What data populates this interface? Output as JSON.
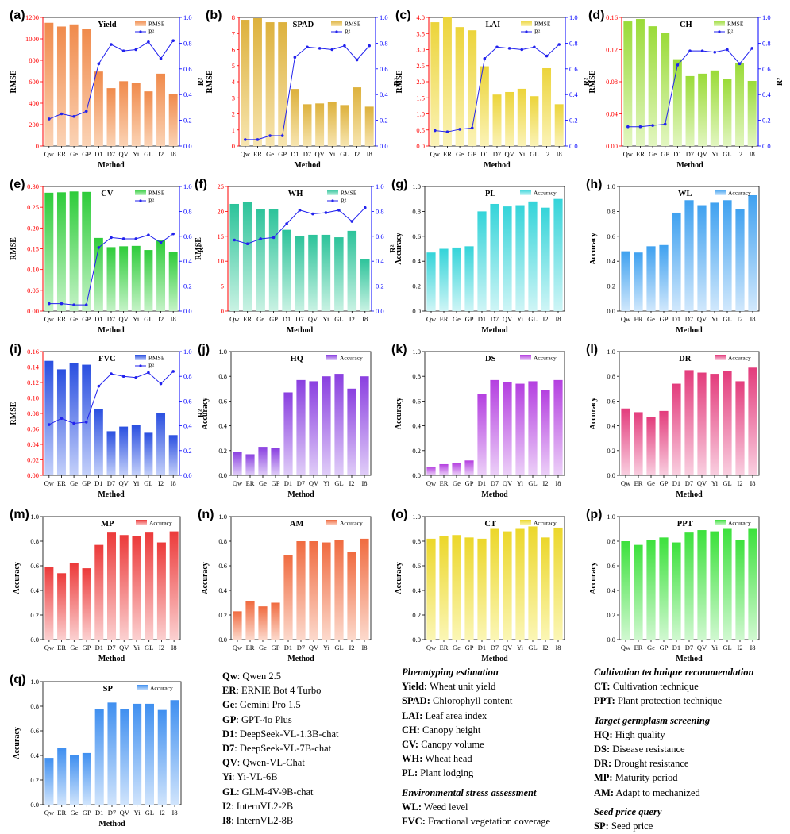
{
  "methods": [
    "Qw",
    "ER",
    "Ge",
    "GP",
    "D1",
    "D7",
    "QV",
    "Yi",
    "GL",
    "I2",
    "I8"
  ],
  "axis": {
    "xlabel": "Method"
  },
  "colors": {
    "yield": [
      "#f08a4b",
      "#fbd3b5"
    ],
    "spad": [
      "#ddb13c",
      "#f7e5b0"
    ],
    "lai": [
      "#ecd43a",
      "#fbf3b7"
    ],
    "ch": [
      "#9adb38",
      "#e2f6c0"
    ],
    "cv": [
      "#2ecc3a",
      "#c5f3c7"
    ],
    "wh": [
      "#2cc39a",
      "#c9f2e3"
    ],
    "pl": [
      "#34d4d9",
      "#cff5f6"
    ],
    "wl": [
      "#3fa1f0",
      "#d1e8fc"
    ],
    "fvc": [
      "#2a4fe0",
      "#c4d0fa"
    ],
    "hq": [
      "#8a3fe0",
      "#e0cdf8"
    ],
    "ds": [
      "#b43fe0",
      "#ecd0f8"
    ],
    "dr": [
      "#e33c7c",
      "#f9cfe0"
    ],
    "mp": [
      "#ec3a3a",
      "#fbd0d0"
    ],
    "am": [
      "#f06b40",
      "#fcd9cc"
    ],
    "ct": [
      "#ecd72a",
      "#fbf6b5"
    ],
    "ppt": [
      "#3ce13c",
      "#d0f8d0"
    ],
    "sp": [
      "#3f8ff0",
      "#d0e4fc"
    ],
    "r2_line": "#2222ee",
    "rmse_axis": "#ff0000",
    "r2_axis": "#0000ff"
  },
  "chart_data": [
    {
      "id": "a",
      "panel": "(a)",
      "title": "Yield",
      "type": "bar+line",
      "color_key": "yield",
      "ylabel": "RMSE",
      "y2label": "R²",
      "legend": [
        "RMSE",
        "R²"
      ],
      "ylim": [
        0,
        1200
      ],
      "yticks": [
        0,
        200,
        400,
        600,
        800,
        1000,
        1200
      ],
      "yticklabels": [
        "0",
        "200",
        "400",
        "600",
        "800",
        "1000",
        "1200"
      ],
      "y2lim": [
        0,
        1.0
      ],
      "y2ticks": [
        0,
        0.2,
        0.4,
        0.6,
        0.8,
        1.0
      ],
      "y2ticklabels": [
        "0.0",
        "0.2",
        "0.4",
        "0.6",
        "0.8",
        "1.0"
      ],
      "values": [
        1150,
        1115,
        1135,
        1095,
        695,
        540,
        605,
        590,
        510,
        675,
        485
      ],
      "r2": [
        0.21,
        0.25,
        0.23,
        0.27,
        0.64,
        0.79,
        0.74,
        0.75,
        0.81,
        0.68,
        0.82
      ]
    },
    {
      "id": "b",
      "panel": "(b)",
      "title": "SPAD",
      "type": "bar+line",
      "color_key": "spad",
      "ylabel": "RMSE",
      "y2label": "R²",
      "legend": [
        "RMSE",
        "R²"
      ],
      "ylim": [
        0,
        8
      ],
      "yticks": [
        0,
        1,
        2,
        3,
        4,
        5,
        6,
        7,
        8
      ],
      "yticklabels": [
        "0",
        "1",
        "2",
        "3",
        "4",
        "5",
        "6",
        "7",
        "8"
      ],
      "y2lim": [
        0,
        1.0
      ],
      "y2ticks": [
        0,
        0.2,
        0.4,
        0.6,
        0.8,
        1.0
      ],
      "y2ticklabels": [
        "0.0",
        "0.2",
        "0.4",
        "0.6",
        "0.8",
        "1.0"
      ],
      "values": [
        7.85,
        7.95,
        7.7,
        7.7,
        3.55,
        2.6,
        2.65,
        2.75,
        2.55,
        3.65,
        2.45
      ],
      "r2": [
        0.05,
        0.05,
        0.08,
        0.08,
        0.69,
        0.77,
        0.76,
        0.75,
        0.78,
        0.67,
        0.78
      ]
    },
    {
      "id": "c",
      "panel": "(c)",
      "title": "LAI",
      "type": "bar+line",
      "color_key": "lai",
      "ylabel": "RMSE",
      "y2label": "R²",
      "legend": [
        "RMSE",
        "R²"
      ],
      "ylim": [
        0,
        4.0
      ],
      "yticks": [
        0,
        0.5,
        1.0,
        1.5,
        2.0,
        2.5,
        3.0,
        3.5,
        4.0
      ],
      "yticklabels": [
        "0.0",
        "0.5",
        "1.0",
        "1.5",
        "2.0",
        "2.5",
        "3.0",
        "3.5",
        "4.0"
      ],
      "y2lim": [
        0,
        1.0
      ],
      "y2ticks": [
        0,
        0.2,
        0.4,
        0.6,
        0.8,
        1.0
      ],
      "y2ticklabels": [
        "0.0",
        "0.2",
        "0.4",
        "0.6",
        "0.8",
        "1.0"
      ],
      "values": [
        3.85,
        4.0,
        3.7,
        3.6,
        2.48,
        1.6,
        1.68,
        1.78,
        1.55,
        2.42,
        1.3
      ],
      "r2": [
        0.12,
        0.11,
        0.13,
        0.14,
        0.68,
        0.77,
        0.76,
        0.75,
        0.77,
        0.7,
        0.79
      ]
    },
    {
      "id": "d",
      "panel": "(d)",
      "title": "CH",
      "type": "bar+line",
      "color_key": "ch",
      "ylabel": "RMSE",
      "y2label": "R²",
      "legend": [
        "RMSE",
        "R²"
      ],
      "ylim": [
        0,
        0.16
      ],
      "yticks": [
        0,
        0.04,
        0.08,
        0.12,
        0.16
      ],
      "yticklabels": [
        "0.00",
        "0.04",
        "0.08",
        "0.12",
        "0.16"
      ],
      "y2lim": [
        0,
        1.0
      ],
      "y2ticks": [
        0,
        0.2,
        0.4,
        0.6,
        0.8,
        1.0
      ],
      "y2ticklabels": [
        "0.0",
        "0.2",
        "0.4",
        "0.6",
        "0.8",
        "1.0"
      ],
      "values": [
        0.155,
        0.158,
        0.149,
        0.141,
        0.108,
        0.087,
        0.09,
        0.094,
        0.083,
        0.103,
        0.081
      ],
      "r2": [
        0.15,
        0.15,
        0.16,
        0.17,
        0.63,
        0.74,
        0.74,
        0.73,
        0.75,
        0.64,
        0.76
      ]
    },
    {
      "id": "e",
      "panel": "(e)",
      "title": "CV",
      "type": "bar+line",
      "color_key": "cv",
      "ylabel": "RMSE",
      "y2label": "R²",
      "legend": [
        "RMSE",
        "R²"
      ],
      "ylim": [
        0,
        0.3
      ],
      "yticks": [
        0,
        0.05,
        0.1,
        0.15,
        0.2,
        0.25,
        0.3
      ],
      "yticklabels": [
        "0.00",
        "0.05",
        "0.10",
        "0.15",
        "0.20",
        "0.25",
        "0.30"
      ],
      "y2lim": [
        0,
        1.0
      ],
      "y2ticks": [
        0,
        0.2,
        0.4,
        0.6,
        0.8,
        1.0
      ],
      "y2ticklabels": [
        "0.0",
        "0.2",
        "0.4",
        "0.6",
        "0.8",
        "1.0"
      ],
      "values": [
        0.285,
        0.286,
        0.288,
        0.287,
        0.176,
        0.154,
        0.156,
        0.157,
        0.147,
        0.17,
        0.142
      ],
      "r2": [
        0.06,
        0.06,
        0.05,
        0.05,
        0.51,
        0.59,
        0.58,
        0.58,
        0.61,
        0.55,
        0.62
      ]
    },
    {
      "id": "f",
      "panel": "(f)",
      "title": "WH",
      "type": "bar+line",
      "color_key": "wh",
      "ylabel": "RMSE",
      "y2label": "R²",
      "legend": [
        "RMSE",
        "R²"
      ],
      "ylim": [
        0,
        25
      ],
      "yticks": [
        0,
        5,
        10,
        15,
        20,
        25
      ],
      "yticklabels": [
        "0",
        "5",
        "10",
        "15",
        "20",
        "25"
      ],
      "y2lim": [
        0,
        1.0
      ],
      "y2ticks": [
        0,
        0.2,
        0.4,
        0.6,
        0.8,
        1.0
      ],
      "y2ticklabels": [
        "0.0",
        "0.2",
        "0.4",
        "0.6",
        "0.8",
        "1.0"
      ],
      "values": [
        21.5,
        21.9,
        20.5,
        20.4,
        16.3,
        15.0,
        15.3,
        15.3,
        14.8,
        16.1,
        10.5
      ],
      "r2": [
        0.57,
        0.54,
        0.58,
        0.59,
        0.7,
        0.81,
        0.78,
        0.79,
        0.81,
        0.72,
        0.83
      ]
    },
    {
      "id": "g",
      "panel": "(g)",
      "title": "PL",
      "type": "bar",
      "color_key": "pl",
      "ylabel": "Accuracy",
      "legend": [
        "Accuracy"
      ],
      "ylim": [
        0,
        1.0
      ],
      "yticks": [
        0,
        0.2,
        0.4,
        0.6,
        0.8,
        1.0
      ],
      "yticklabels": [
        "0.0",
        "0.2",
        "0.4",
        "0.6",
        "0.8",
        "1.0"
      ],
      "values": [
        0.47,
        0.5,
        0.51,
        0.52,
        0.8,
        0.86,
        0.84,
        0.85,
        0.88,
        0.83,
        0.9
      ]
    },
    {
      "id": "h",
      "panel": "(h)",
      "title": "WL",
      "type": "bar",
      "color_key": "wl",
      "ylabel": "Accuracy",
      "legend": [
        "Accuracy"
      ],
      "ylim": [
        0,
        1.0
      ],
      "yticks": [
        0,
        0.2,
        0.4,
        0.6,
        0.8,
        1.0
      ],
      "yticklabels": [
        "0.0",
        "0.2",
        "0.4",
        "0.6",
        "0.8",
        "1.0"
      ],
      "values": [
        0.48,
        0.47,
        0.52,
        0.53,
        0.79,
        0.89,
        0.85,
        0.87,
        0.89,
        0.82,
        0.93
      ]
    },
    {
      "id": "i",
      "panel": "(i)",
      "title": "FVC",
      "type": "bar+line",
      "color_key": "fvc",
      "ylabel": "RMSE",
      "y2label": "R²",
      "legend": [
        "RMSE",
        "R²"
      ],
      "ylim": [
        0,
        0.16
      ],
      "yticks": [
        0,
        0.02,
        0.04,
        0.06,
        0.08,
        0.1,
        0.12,
        0.14,
        0.16
      ],
      "yticklabels": [
        "0.00",
        "0.02",
        "0.04",
        "0.06",
        "0.08",
        "0.10",
        "0.12",
        "0.14",
        "0.16"
      ],
      "y2lim": [
        0,
        1.0
      ],
      "y2ticks": [
        0,
        0.2,
        0.4,
        0.6,
        0.8,
        1.0
      ],
      "y2ticklabels": [
        "0.0",
        "0.2",
        "0.4",
        "0.6",
        "0.8",
        "1.0"
      ],
      "values": [
        0.148,
        0.137,
        0.145,
        0.143,
        0.086,
        0.057,
        0.063,
        0.065,
        0.055,
        0.081,
        0.052
      ],
      "r2": [
        0.41,
        0.46,
        0.42,
        0.43,
        0.72,
        0.82,
        0.8,
        0.79,
        0.83,
        0.74,
        0.84
      ]
    },
    {
      "id": "j",
      "panel": "(j)",
      "title": "HQ",
      "type": "bar",
      "color_key": "hq",
      "ylabel": "Accuracy",
      "legend": [
        "Accuracy"
      ],
      "ylim": [
        0,
        1.0
      ],
      "yticks": [
        0,
        0.2,
        0.4,
        0.6,
        0.8,
        1.0
      ],
      "yticklabels": [
        "0.0",
        "0.2",
        "0.4",
        "0.6",
        "0.8",
        "1.0"
      ],
      "values": [
        0.19,
        0.17,
        0.23,
        0.22,
        0.67,
        0.77,
        0.76,
        0.8,
        0.82,
        0.7,
        0.8
      ]
    },
    {
      "id": "k",
      "panel": "(k)",
      "title": "DS",
      "type": "bar",
      "color_key": "ds",
      "ylabel": "Accuracy",
      "legend": [
        "Accuracy"
      ],
      "ylim": [
        0,
        1.0
      ],
      "yticks": [
        0,
        0.2,
        0.4,
        0.6,
        0.8,
        1.0
      ],
      "yticklabels": [
        "0.0",
        "0.2",
        "0.4",
        "0.6",
        "0.8",
        "1.0"
      ],
      "values": [
        0.07,
        0.09,
        0.1,
        0.12,
        0.66,
        0.77,
        0.75,
        0.74,
        0.76,
        0.69,
        0.77
      ]
    },
    {
      "id": "l",
      "panel": "(l)",
      "title": "DR",
      "type": "bar",
      "color_key": "dr",
      "ylabel": "Accuracy",
      "legend": [
        "Accuracy"
      ],
      "ylim": [
        0,
        1.0
      ],
      "yticks": [
        0,
        0.2,
        0.4,
        0.6,
        0.8,
        1.0
      ],
      "yticklabels": [
        "0.0",
        "0.2",
        "0.4",
        "0.6",
        "0.8",
        "1.0"
      ],
      "values": [
        0.54,
        0.51,
        0.47,
        0.52,
        0.74,
        0.85,
        0.83,
        0.82,
        0.84,
        0.76,
        0.87
      ]
    },
    {
      "id": "m",
      "panel": "(m)",
      "title": "MP",
      "type": "bar",
      "color_key": "mp",
      "ylabel": "Accuracy",
      "legend": [
        "Accuracy"
      ],
      "ylim": [
        0,
        1.0
      ],
      "yticks": [
        0,
        0.2,
        0.4,
        0.6,
        0.8,
        1.0
      ],
      "yticklabels": [
        "0.0",
        "0.2",
        "0.4",
        "0.6",
        "0.8",
        "1.0"
      ],
      "values": [
        0.59,
        0.54,
        0.62,
        0.58,
        0.77,
        0.87,
        0.85,
        0.84,
        0.87,
        0.79,
        0.88
      ]
    },
    {
      "id": "n",
      "panel": "(n)",
      "title": "AM",
      "type": "bar",
      "color_key": "am",
      "ylabel": "Accuracy",
      "legend": [
        "Accuracy"
      ],
      "ylim": [
        0,
        1.0
      ],
      "yticks": [
        0,
        0.2,
        0.4,
        0.6,
        0.8,
        1.0
      ],
      "yticklabels": [
        "0.0",
        "0.2",
        "0.4",
        "0.6",
        "0.8",
        "1.0"
      ],
      "values": [
        0.23,
        0.31,
        0.27,
        0.3,
        0.69,
        0.8,
        0.8,
        0.79,
        0.81,
        0.71,
        0.82
      ]
    },
    {
      "id": "o",
      "panel": "(o)",
      "title": "CT",
      "type": "bar",
      "color_key": "ct",
      "ylabel": "Accuracy",
      "legend": [
        "Accuracy"
      ],
      "ylim": [
        0,
        1.0
      ],
      "yticks": [
        0,
        0.2,
        0.4,
        0.6,
        0.8,
        1.0
      ],
      "yticklabels": [
        "0.0",
        "0.2",
        "0.4",
        "0.6",
        "0.8",
        "1.0"
      ],
      "values": [
        0.82,
        0.84,
        0.85,
        0.83,
        0.82,
        0.9,
        0.88,
        0.9,
        0.92,
        0.83,
        0.91
      ]
    },
    {
      "id": "p",
      "panel": "(p)",
      "title": "PPT",
      "type": "bar",
      "color_key": "ppt",
      "ylabel": "Accuracy",
      "legend": [
        "Accuracy"
      ],
      "ylim": [
        0,
        1.0
      ],
      "yticks": [
        0,
        0.2,
        0.4,
        0.6,
        0.8,
        1.0
      ],
      "yticklabels": [
        "0.0",
        "0.2",
        "0.4",
        "0.6",
        "0.8",
        "1.0"
      ],
      "values": [
        0.8,
        0.77,
        0.81,
        0.83,
        0.79,
        0.87,
        0.89,
        0.88,
        0.9,
        0.81,
        0.9
      ]
    },
    {
      "id": "q",
      "panel": "(q)",
      "title": "SP",
      "type": "bar",
      "color_key": "sp",
      "ylabel": "Accuracy",
      "legend": [
        "Accuracy"
      ],
      "ylim": [
        0,
        1.0
      ],
      "yticks": [
        0,
        0.2,
        0.4,
        0.6,
        0.8,
        1.0
      ],
      "yticklabels": [
        "0.0",
        "0.2",
        "0.4",
        "0.6",
        "0.8",
        "1.0"
      ],
      "values": [
        0.38,
        0.46,
        0.4,
        0.42,
        0.78,
        0.83,
        0.78,
        0.82,
        0.82,
        0.77,
        0.85
      ]
    }
  ],
  "model_legend": [
    {
      "abbr": "Qw",
      "sep": ": ",
      "desc": "Qwen 2.5"
    },
    {
      "abbr": "ER",
      "sep": ": ",
      "desc": "ERNIE Bot 4 Turbo"
    },
    {
      "abbr": "Ge",
      "sep": ": ",
      "desc": "Gemini Pro 1.5"
    },
    {
      "abbr": "GP",
      "sep": ": ",
      "desc": "GPT-4o Plus"
    },
    {
      "abbr": "D1",
      "sep": ": ",
      "desc": "DeepSeek-VL-1.3B-chat"
    },
    {
      "abbr": "D7",
      "sep": ": ",
      "desc": "DeepSeek-VL-7B-chat"
    },
    {
      "abbr": "QV",
      "sep": ": ",
      "desc": "Qwen-VL-Chat"
    },
    {
      "abbr": "Yi",
      "sep": ": ",
      "desc": "Yi-VL-6B"
    },
    {
      "abbr": "GL",
      "sep": ": ",
      "desc": "GLM-4V-9B-chat"
    },
    {
      "abbr": "I2",
      "sep": ": ",
      "desc": "InternVL2-2B"
    },
    {
      "abbr": "I8",
      "sep": ": ",
      "desc": "InternVL2-8B"
    }
  ],
  "task_legend_col1": [
    {
      "section": "Phenotyping estimation",
      "items": [
        {
          "abbr": "Yield:",
          "desc": " Wheat unit yield"
        },
        {
          "abbr": "SPAD:",
          "desc": " Chlorophyll content"
        },
        {
          "abbr": "LAI:",
          "desc": " Leaf area index"
        },
        {
          "abbr": "CH:",
          "desc": " Canopy height"
        },
        {
          "abbr": "CV:",
          "desc": " Canopy volume"
        },
        {
          "abbr": "WH:",
          "desc": " Wheat head"
        },
        {
          "abbr": "PL:",
          "desc": " Plant lodging"
        }
      ]
    },
    {
      "section": "Environmental stress assessment",
      "items": [
        {
          "abbr": "WL:",
          "desc": " Weed level"
        },
        {
          "abbr": "FVC:",
          "desc": " Fractional vegetation coverage"
        }
      ]
    }
  ],
  "task_legend_col2": [
    {
      "section": "Cultivation technique recommendation",
      "items": [
        {
          "abbr": "CT:",
          "desc": " Cultivation technique"
        },
        {
          "abbr": "PPT:",
          "desc": " Plant protection technique"
        }
      ]
    },
    {
      "section": "Target germplasm screening",
      "items": [
        {
          "abbr": "HQ:",
          "desc": " High quality"
        },
        {
          "abbr": "DS:",
          "desc": " Disease resistance"
        },
        {
          "abbr": "DR:",
          "desc": " Drought resistance"
        },
        {
          "abbr": "MP:",
          "desc": " Maturity period"
        },
        {
          "abbr": "AM:",
          "desc": " Adapt to mechanized"
        }
      ]
    },
    {
      "section": "Seed price query",
      "items": [
        {
          "abbr": "SP:",
          "desc": " Seed price"
        }
      ]
    }
  ]
}
